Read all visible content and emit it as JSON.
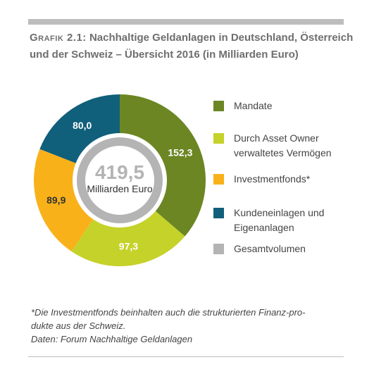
{
  "header": {
    "label": "Grafik 2.1:",
    "title": "Nachhaltige Geldanlagen in Deutschland, Österreich und der Schweiz – Übersicht 2016 (in Milliarden Euro)"
  },
  "chart_data": {
    "type": "pie",
    "title": "Grafik 2.1: Nachhaltige Geldanlagen in Deutschland, Österreich und der Schweiz – Übersicht 2016 (in Milliarden Euro)",
    "categories": [
      "Mandate",
      "Durch Asset Owner verwaltetes Vermögen",
      "Investmentfonds*",
      "Kundeneinlagen und Eigenanlagen"
    ],
    "values": [
      152.3,
      97.3,
      89.9,
      80.0
    ],
    "value_labels": [
      "152,3",
      "97,3",
      "89,9",
      "80,0"
    ],
    "colors": [
      "#6b8623",
      "#c5d22a",
      "#f9b11a",
      "#105f7b"
    ],
    "label_colors": [
      "#ffffff",
      "#ffffff",
      "#333333",
      "#ffffff"
    ],
    "total": {
      "value": "419,5",
      "unit": "Milliarden Euro",
      "color": "#b4b4b4"
    },
    "legend_position": "right"
  },
  "legend": [
    {
      "label": "Mandate",
      "color": "#6b8623"
    },
    {
      "label": "Durch Asset Owner\nverwaltetes Vermögen",
      "color": "#c5d22a"
    },
    {
      "label": "Investmentfonds*",
      "color": "#f9b11a"
    },
    {
      "label": "Kundeneinlagen und\nEigenanlagen",
      "color": "#105f7b"
    },
    {
      "label": "Gesamtvolumen",
      "color": "#b4b4b4"
    }
  ],
  "footnote": {
    "line1": "*Die Investmentfonds beinhalten auch die strukturierten Finanz-pro-",
    "line2": "dukte aus der Schweiz.",
    "line3": "Daten: Forum Nachhaltige Geldanlagen"
  }
}
